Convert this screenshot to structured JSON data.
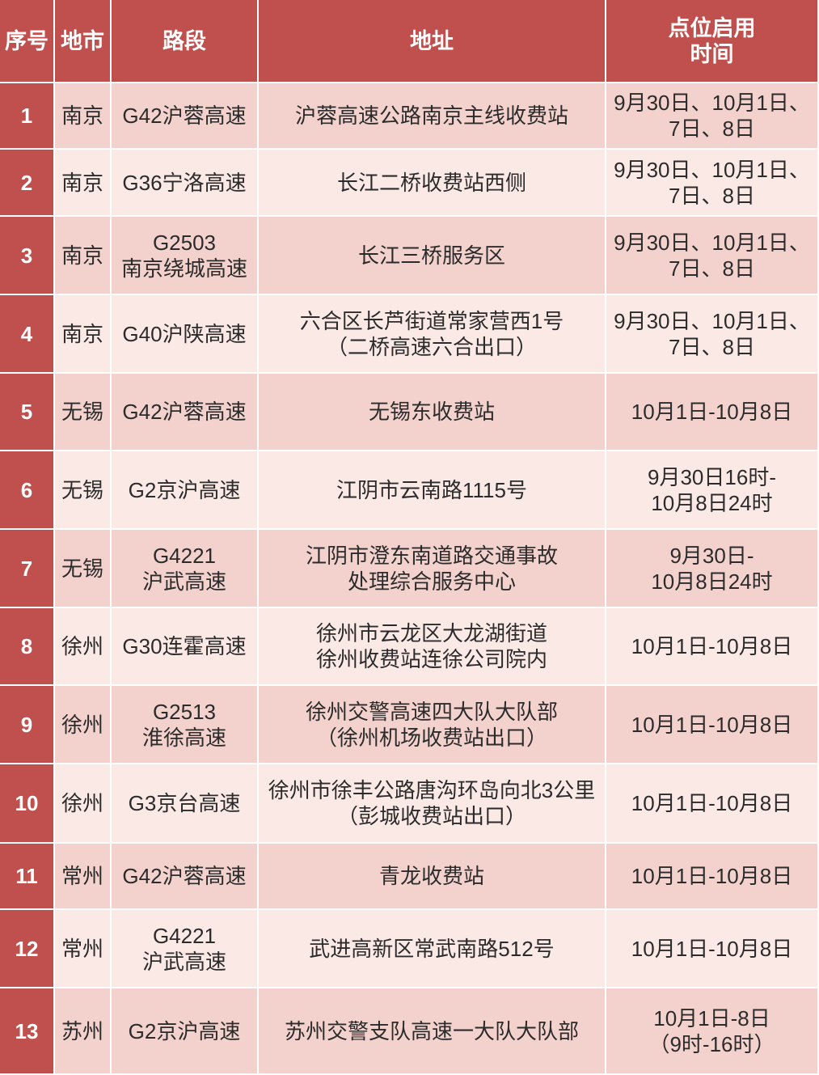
{
  "table": {
    "header": [
      [
        "序号"
      ],
      [
        "地市"
      ],
      [
        "路段"
      ],
      [
        "地址"
      ],
      [
        "点位启用",
        "时间"
      ]
    ],
    "rows": [
      [
        [
          "1"
        ],
        [
          "南京"
        ],
        [
          "G42沪蓉高速"
        ],
        [
          "沪蓉高速公路南京主线收费站"
        ],
        [
          "9月30日、10月1日、",
          "7日、8日"
        ]
      ],
      [
        [
          "2"
        ],
        [
          "南京"
        ],
        [
          "G36宁洛高速"
        ],
        [
          "长江二桥收费站西侧"
        ],
        [
          "9月30日、10月1日、",
          "7日、8日"
        ]
      ],
      [
        [
          "3"
        ],
        [
          "南京"
        ],
        [
          "G2503",
          "南京绕城高速"
        ],
        [
          "长江三桥服务区"
        ],
        [
          "9月30日、10月1日、",
          "7日、8日"
        ]
      ],
      [
        [
          "4"
        ],
        [
          "南京"
        ],
        [
          "G40沪陕高速"
        ],
        [
          "六合区长芦街道常家营西1号",
          "（二桥高速六合出口）"
        ],
        [
          "9月30日、10月1日、",
          "7日、8日"
        ]
      ],
      [
        [
          "5"
        ],
        [
          "无锡"
        ],
        [
          "G42沪蓉高速"
        ],
        [
          "无锡东收费站"
        ],
        [
          "10月1日-10月8日"
        ]
      ],
      [
        [
          "6"
        ],
        [
          "无锡"
        ],
        [
          "G2京沪高速"
        ],
        [
          "江阴市云南路1115号"
        ],
        [
          "9月30日16时-",
          "10月8日24时"
        ]
      ],
      [
        [
          "7"
        ],
        [
          "无锡"
        ],
        [
          "G4221",
          "沪武高速"
        ],
        [
          "江阴市澄东南道路交通事故",
          "处理综合服务中心"
        ],
        [
          "9月30日-",
          "10月8日24时"
        ]
      ],
      [
        [
          "8"
        ],
        [
          "徐州"
        ],
        [
          "G30连霍高速"
        ],
        [
          "徐州市云龙区大龙湖街道",
          "徐州收费站连徐公司院内"
        ],
        [
          "10月1日-10月8日"
        ]
      ],
      [
        [
          "9"
        ],
        [
          "徐州"
        ],
        [
          "G2513",
          "淮徐高速"
        ],
        [
          "徐州交警高速四大队大队部",
          "（徐州机场收费站出口）"
        ],
        [
          "10月1日-10月8日"
        ]
      ],
      [
        [
          "10"
        ],
        [
          "徐州"
        ],
        [
          "G3京台高速"
        ],
        [
          "徐州市徐丰公路唐沟环岛向北3公里",
          "（彭城收费站出口）"
        ],
        [
          "10月1日-10月8日"
        ]
      ],
      [
        [
          "11"
        ],
        [
          "常州"
        ],
        [
          "G42沪蓉高速"
        ],
        [
          "青龙收费站"
        ],
        [
          "10月1日-10月8日"
        ]
      ],
      [
        [
          "12"
        ],
        [
          "常州"
        ],
        [
          "G4221",
          "沪武高速"
        ],
        [
          "武进高新区常武南路512号"
        ],
        [
          "10月1日-10月8日"
        ]
      ],
      [
        [
          "13"
        ],
        [
          "苏州"
        ],
        [
          "G2京沪高速"
        ],
        [
          "苏州交警支队高速一大队大队部"
        ],
        [
          "10月1日-8日",
          "（9时-16时）"
        ]
      ]
    ]
  }
}
